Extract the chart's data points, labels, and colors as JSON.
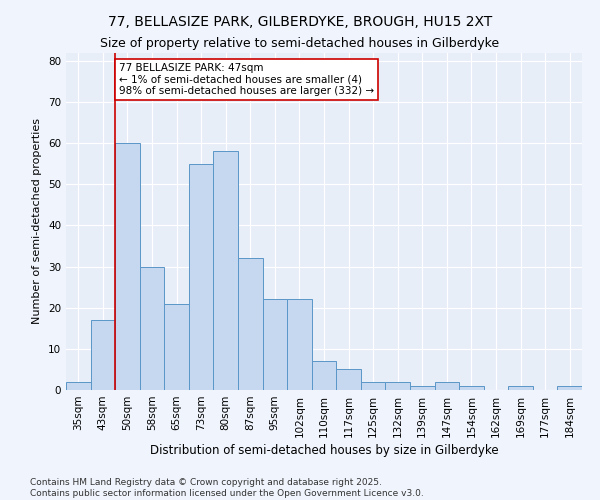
{
  "title1": "77, BELLASIZE PARK, GILBERDYKE, BROUGH, HU15 2XT",
  "title2": "Size of property relative to semi-detached houses in Gilberdyke",
  "xlabel": "Distribution of semi-detached houses by size in Gilberdyke",
  "ylabel": "Number of semi-detached properties",
  "categories": [
    "35sqm",
    "43sqm",
    "50sqm",
    "58sqm",
    "65sqm",
    "73sqm",
    "80sqm",
    "87sqm",
    "95sqm",
    "102sqm",
    "110sqm",
    "117sqm",
    "125sqm",
    "132sqm",
    "139sqm",
    "147sqm",
    "154sqm",
    "162sqm",
    "169sqm",
    "177sqm",
    "184sqm"
  ],
  "values": [
    2,
    17,
    60,
    30,
    21,
    55,
    58,
    32,
    22,
    22,
    7,
    5,
    2,
    2,
    1,
    2,
    1,
    0,
    1,
    0,
    1
  ],
  "bar_color": "#c5d8f0",
  "bar_edge_color": "#5a96c8",
  "vline_index": 1,
  "vline_color": "#cc0000",
  "annotation_text": "77 BELLASIZE PARK: 47sqm\n← 1% of semi-detached houses are smaller (4)\n98% of semi-detached houses are larger (332) →",
  "annotation_box_color": "#ffffff",
  "annotation_box_edge": "#cc0000",
  "ylim": [
    0,
    82
  ],
  "yticks": [
    0,
    10,
    20,
    30,
    40,
    50,
    60,
    70,
    80
  ],
  "background_color": "#e8eef8",
  "fig_background_color": "#f0f4fc",
  "grid_color": "#ffffff",
  "footer1": "Contains HM Land Registry data © Crown copyright and database right 2025.",
  "footer2": "Contains public sector information licensed under the Open Government Licence v3.0.",
  "title1_fontsize": 10,
  "title2_fontsize": 9,
  "xlabel_fontsize": 8.5,
  "ylabel_fontsize": 8,
  "tick_fontsize": 7.5,
  "footer_fontsize": 6.5,
  "ann_fontsize": 7.5
}
